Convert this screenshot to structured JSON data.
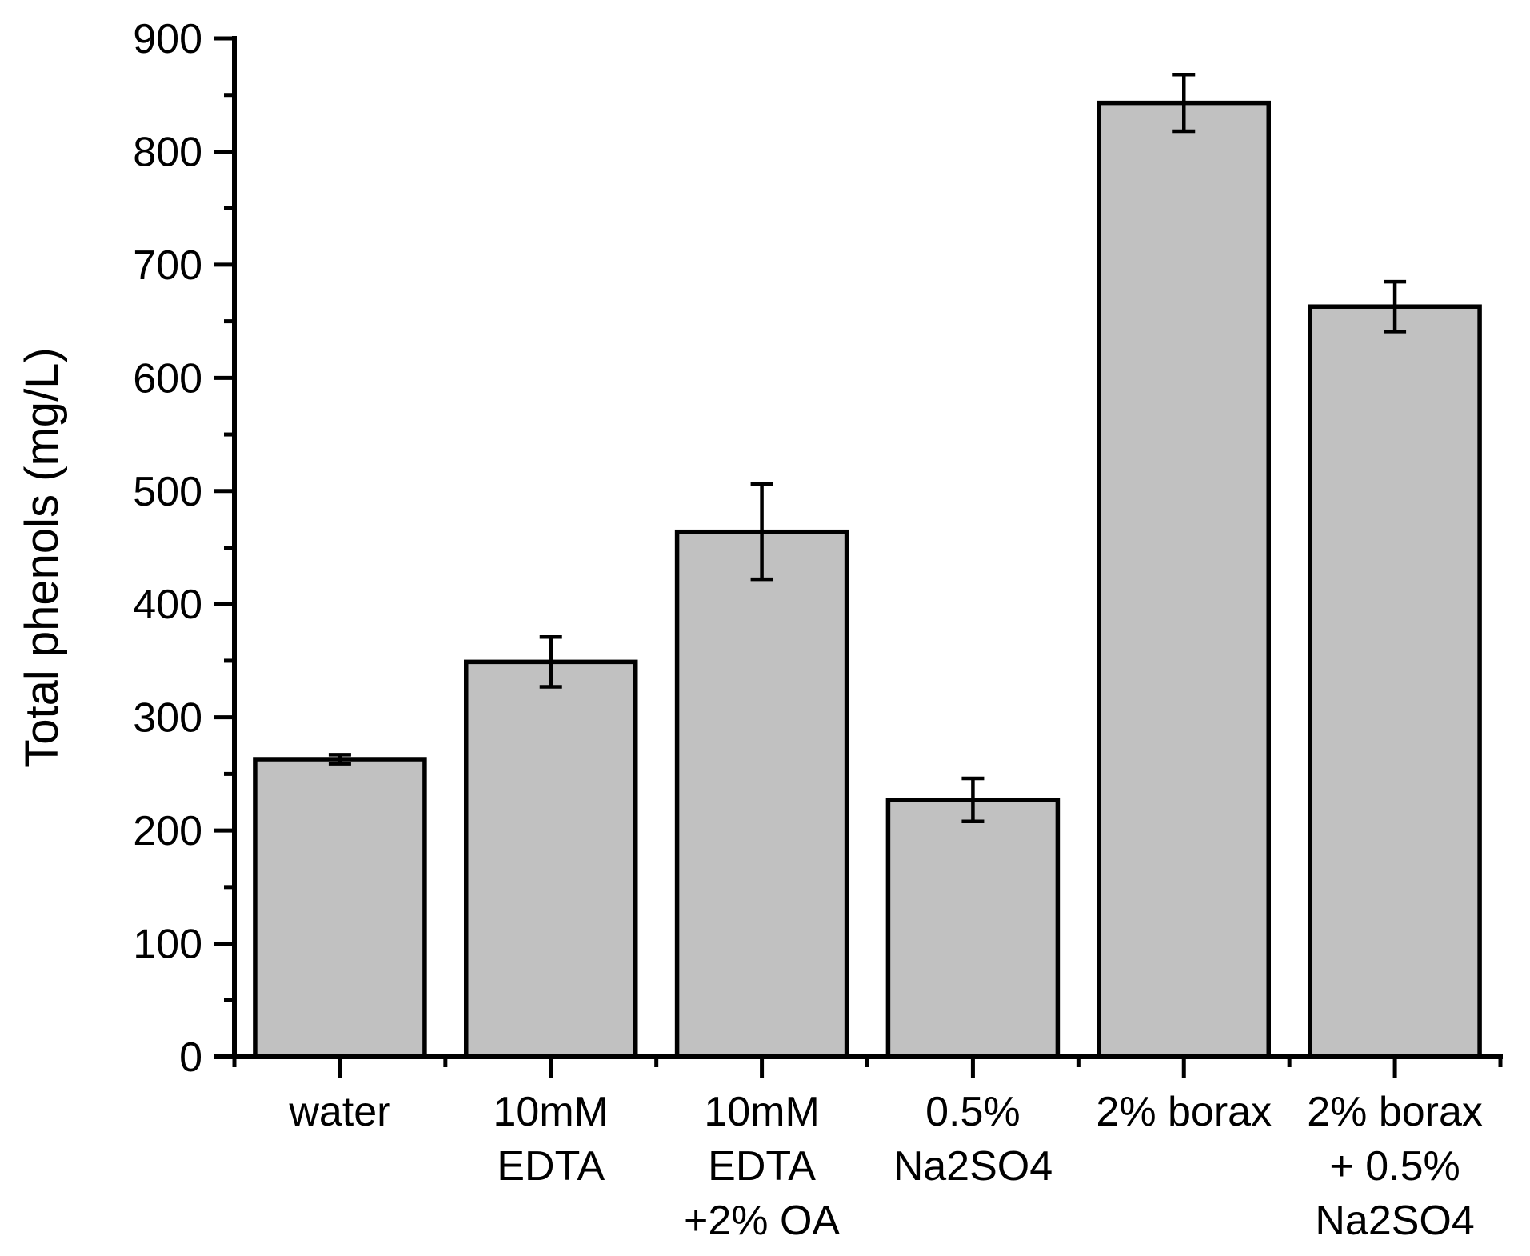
{
  "figure": {
    "background": "#ffffff"
  },
  "chart_data": {
    "type": "bar",
    "ylabel": "Total phenols (mg/L)",
    "categories": [
      "water",
      "10mM EDTA",
      "10mM EDTA +2% OA",
      "0.5% Na2SO4",
      "2% borax",
      "2% borax + 0.5% Na2SO4"
    ],
    "category_lines": [
      [
        "water"
      ],
      [
        "10mM",
        "EDTA"
      ],
      [
        "10mM",
        "EDTA",
        "+2% OA"
      ],
      [
        "0.5%",
        "Na2SO4"
      ],
      [
        "2% borax"
      ],
      [
        "2% borax",
        "+ 0.5%",
        "Na2SO4"
      ]
    ],
    "values": [
      263,
      349,
      464,
      227,
      843,
      663
    ],
    "errors": [
      4,
      22,
      42,
      19,
      25,
      22
    ],
    "ylim": [
      0,
      900
    ],
    "yticks": [
      0,
      100,
      200,
      300,
      400,
      500,
      600,
      700,
      800,
      900
    ],
    "minor_tick_step": 50,
    "grid": false,
    "legend_position": "none",
    "bar_fill": "#c1c1c1",
    "bar_stroke": "#000000",
    "axis_color": "#000000"
  }
}
